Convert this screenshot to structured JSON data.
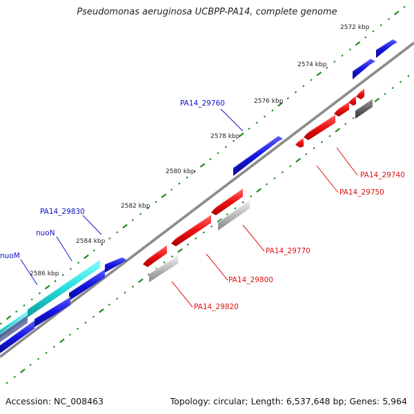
{
  "title": "Pseudomonas aeruginosa UCBPP-PA14, complete genome",
  "footer": {
    "accession": "Accession: NC_008463",
    "summary": "Topology: circular; Length: 6,537,648 bp; Genes: 5,964"
  },
  "colors": {
    "forward_gene": "#1010dd",
    "forward_highlight": "#22dddd",
    "reverse_gene": "#ee1111",
    "reverse_pseudo": "#bbbbbb",
    "backbone": "#888888",
    "tick": "#1a8a1a",
    "forward_label": "#1010cc",
    "reverse_label": "#dd1111"
  },
  "scale_labels": [
    "2572 kbp",
    "2574 kbp",
    "2576 kbp",
    "2578 kbp",
    "2580 kbp",
    "2582 kbp",
    "2584 kbp",
    "2586 kbp"
  ],
  "forward_labels": [
    "PA14_29760",
    "PA14_29830",
    "nuoN",
    "nuoM"
  ],
  "reverse_labels": [
    "PA14_29740",
    "PA14_29750",
    "PA14_29770",
    "PA14_29800",
    "PA14_29820"
  ]
}
